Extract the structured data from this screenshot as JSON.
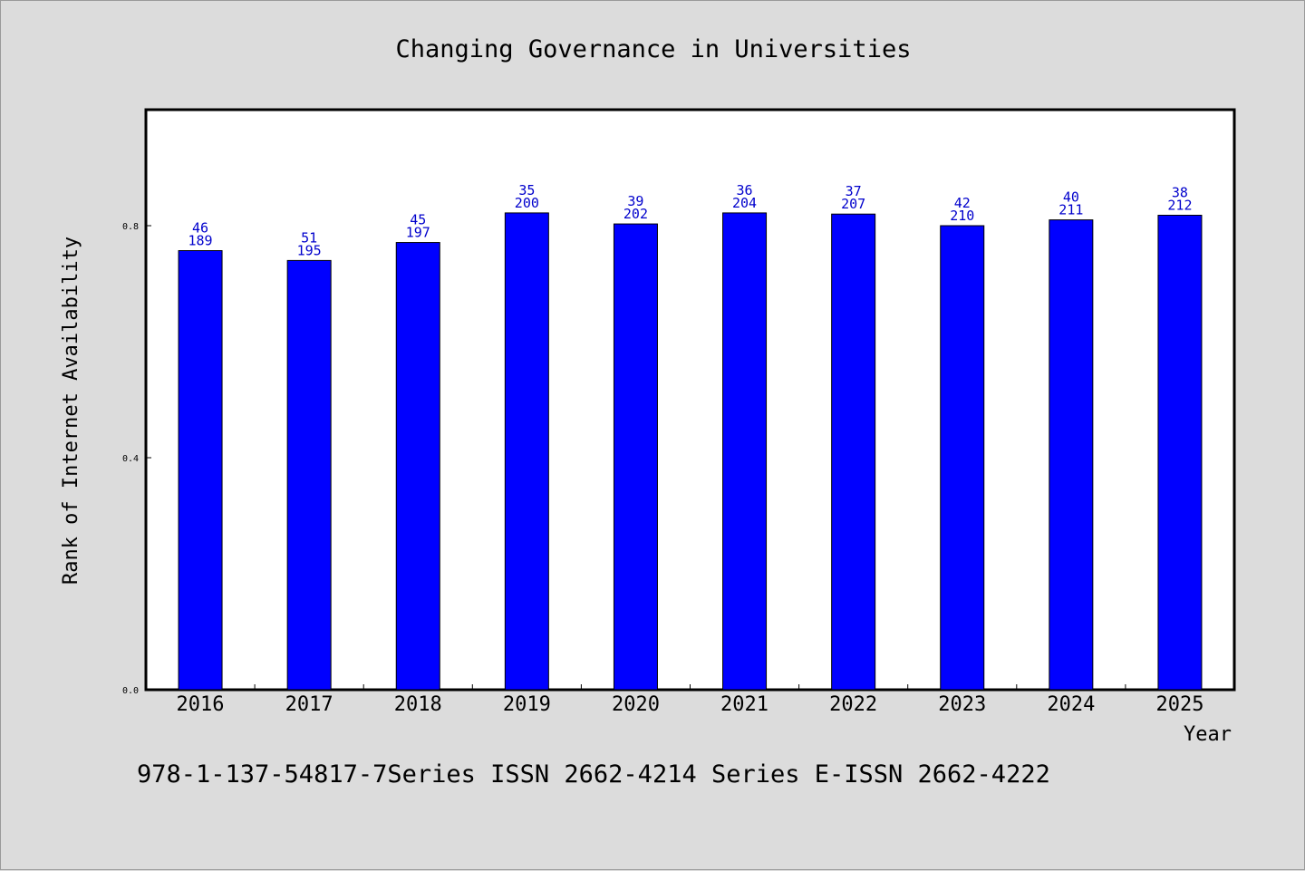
{
  "chart_data": {
    "type": "bar",
    "title": "Changing Governance in Universities",
    "xlabel": "Year",
    "ylabel": "Rank of Internet Availability",
    "categories": [
      "2016",
      "2017",
      "2018",
      "2019",
      "2020",
      "2021",
      "2022",
      "2023",
      "2024",
      "2025"
    ],
    "values": [
      0.757,
      0.74,
      0.771,
      0.822,
      0.803,
      0.822,
      0.82,
      0.8,
      0.81,
      0.818
    ],
    "label_top": [
      "46",
      "51",
      "45",
      "35",
      "39",
      "36",
      "37",
      "42",
      "40",
      "38"
    ],
    "label_bottom": [
      "189",
      "195",
      "197",
      "200",
      "202",
      "204",
      "207",
      "210",
      "211",
      "212"
    ],
    "ylim": [
      0,
      1.0
    ],
    "yticks": [
      "0.0",
      "0.4",
      "0.8"
    ],
    "ytick_values": [
      0.0,
      0.4,
      0.8
    ],
    "grid": false,
    "colors": {
      "bar": "#0000ff",
      "label": "#0000cc",
      "background": "#dcdcdc",
      "plot": "#ffffff"
    }
  },
  "footer": "978-1-137-54817-7Series ISSN 2662-4214 Series E-ISSN 2662-4222"
}
